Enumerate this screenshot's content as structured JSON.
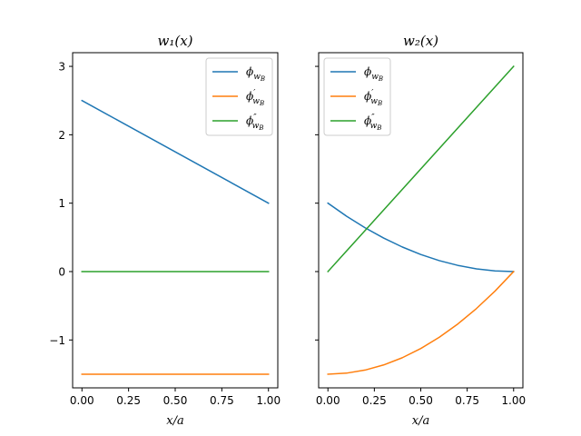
{
  "chart_data": [
    {
      "type": "line",
      "title": "w₁(x)",
      "xlabel": "x/a",
      "ylabel": "",
      "xlim": [
        -0.05,
        1.05
      ],
      "ylim": [
        -1.7,
        3.2
      ],
      "xticks": [
        0.0,
        0.25,
        0.5,
        0.75,
        1.0
      ],
      "xtick_labels": [
        "0.00",
        "0.25",
        "0.50",
        "0.75",
        "1.00"
      ],
      "yticks": [
        -1,
        0,
        1,
        2,
        3
      ],
      "ytick_labels": [
        "−1",
        "0",
        "1",
        "2",
        "3"
      ],
      "show_ytick_labels": true,
      "legend": "top-right",
      "series": [
        {
          "name": "ϕ_wB",
          "color": "#1f77b4",
          "x": [
            0.0,
            1.0
          ],
          "y": [
            2.5,
            1.0
          ]
        },
        {
          "name": "ϕ′_wB",
          "color": "#ff7f0e",
          "x": [
            0.0,
            1.0
          ],
          "y": [
            -1.5,
            -1.5
          ]
        },
        {
          "name": "ϕ″_wB",
          "color": "#2ca02c",
          "x": [
            0.0,
            1.0
          ],
          "y": [
            0.0,
            0.0
          ]
        }
      ]
    },
    {
      "type": "line",
      "title": "w₂(x)",
      "xlabel": "x/a",
      "ylabel": "",
      "xlim": [
        -0.05,
        1.05
      ],
      "ylim": [
        -1.7,
        3.2
      ],
      "xticks": [
        0.0,
        0.25,
        0.5,
        0.75,
        1.0
      ],
      "xtick_labels": [
        "0.00",
        "0.25",
        "0.50",
        "0.75",
        "1.00"
      ],
      "yticks": [
        -1,
        0,
        1,
        2,
        3
      ],
      "ytick_labels": [
        "−1",
        "0",
        "1",
        "2",
        "3"
      ],
      "show_ytick_labels": false,
      "legend": "top-left",
      "series": [
        {
          "name": "ϕ_wB",
          "color": "#1f77b4",
          "x": [
            0.0,
            0.1,
            0.2,
            0.3,
            0.4,
            0.5,
            0.6,
            0.7,
            0.8,
            0.9,
            1.0
          ],
          "y": [
            1.0,
            0.81,
            0.64,
            0.49,
            0.36,
            0.25,
            0.16,
            0.09,
            0.04,
            0.01,
            0.0
          ]
        },
        {
          "name": "ϕ′_wB",
          "color": "#ff7f0e",
          "x": [
            0.0,
            0.1,
            0.2,
            0.3,
            0.4,
            0.5,
            0.6,
            0.7,
            0.8,
            0.9,
            1.0
          ],
          "y": [
            -1.5,
            -1.485,
            -1.44,
            -1.365,
            -1.26,
            -1.125,
            -0.96,
            -0.765,
            -0.54,
            -0.285,
            0.0
          ]
        },
        {
          "name": "ϕ″_wB",
          "color": "#2ca02c",
          "x": [
            0.0,
            1.0
          ],
          "y": [
            0.0,
            3.0
          ]
        }
      ]
    }
  ]
}
